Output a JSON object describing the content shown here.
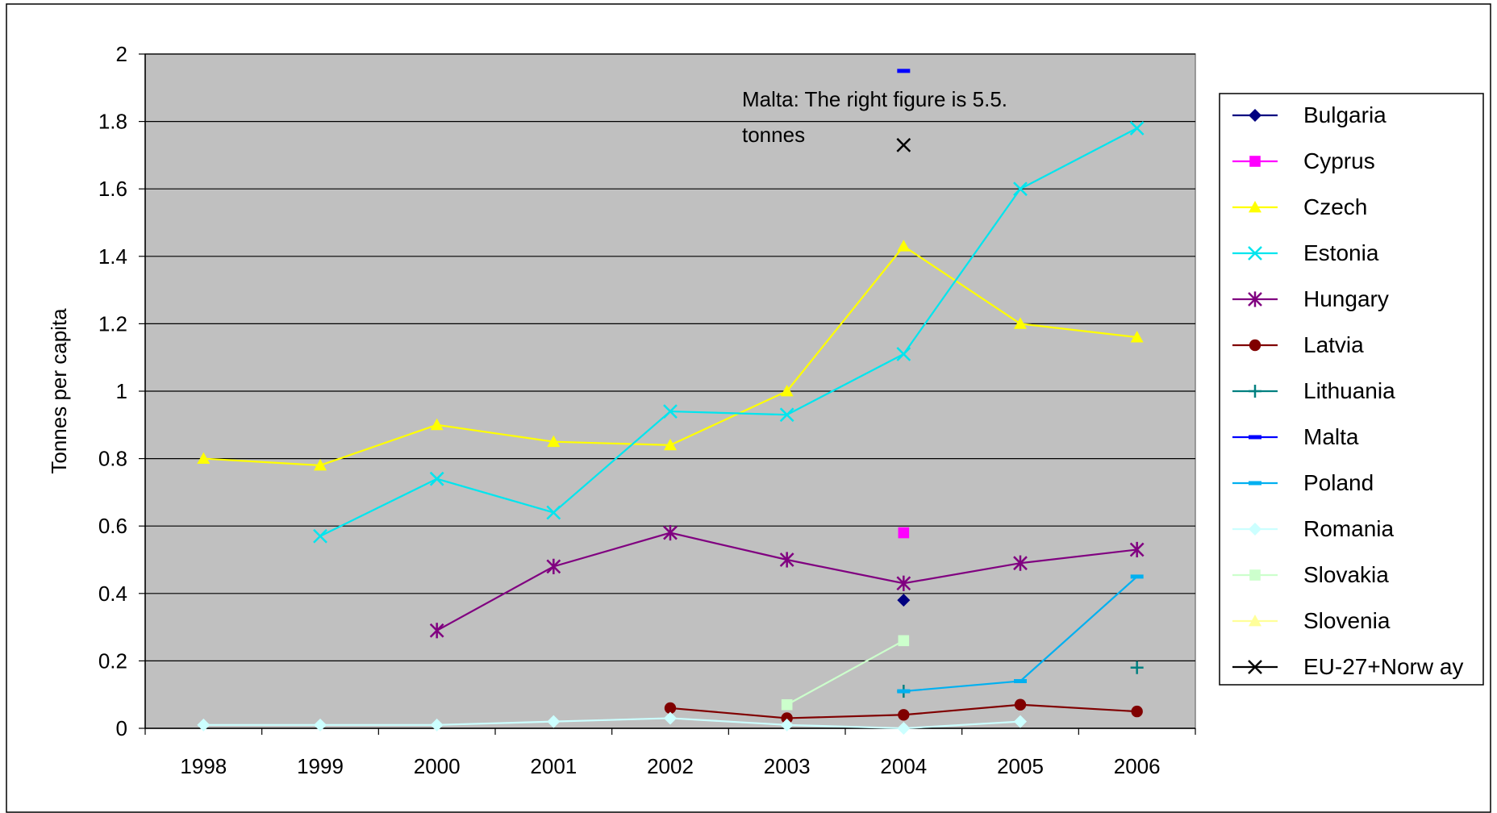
{
  "chart_data": {
    "type": "line",
    "title": "",
    "xlabel": "",
    "ylabel": "Tonnes per capita",
    "categories": [
      "1998",
      "1999",
      "2000",
      "2001",
      "2002",
      "2003",
      "2004",
      "2005",
      "2006"
    ],
    "ylim": [
      0,
      2
    ],
    "yticks": [
      "0",
      "0.2",
      "0.4",
      "0.6",
      "0.8",
      "1",
      "1.2",
      "1.4",
      "1.6",
      "1.8",
      "2"
    ],
    "grid": true,
    "plot_background": "#c0c0c0",
    "legend_position": "right",
    "annotation": {
      "line1": "Malta: The right figure is 5.5.",
      "line2": "tonnes",
      "at_category": "2004"
    },
    "series": [
      {
        "name": "Bulgaria",
        "color": "#000080",
        "marker": "diamond",
        "line": true,
        "values": [
          null,
          null,
          null,
          null,
          null,
          null,
          0.38,
          null,
          null
        ]
      },
      {
        "name": "Cyprus",
        "color": "#ff00ff",
        "marker": "square",
        "line": true,
        "values": [
          null,
          null,
          null,
          null,
          null,
          null,
          0.58,
          null,
          null
        ]
      },
      {
        "name": "Czech",
        "color": "#ffff00",
        "marker": "triangle",
        "line": true,
        "values": [
          0.8,
          0.78,
          0.9,
          0.85,
          0.84,
          1.0,
          1.43,
          1.2,
          1.16
        ]
      },
      {
        "name": "Estonia",
        "color": "#00e5ee",
        "marker": "x",
        "line": true,
        "values": [
          null,
          0.57,
          0.74,
          0.64,
          0.94,
          0.93,
          1.11,
          1.6,
          1.78
        ]
      },
      {
        "name": "Hungary",
        "color": "#800080",
        "marker": "star",
        "line": true,
        "values": [
          null,
          null,
          0.29,
          0.48,
          0.58,
          0.5,
          0.43,
          0.49,
          0.53
        ]
      },
      {
        "name": "Latvia",
        "color": "#800000",
        "marker": "circle",
        "line": true,
        "values": [
          null,
          null,
          null,
          null,
          0.06,
          0.03,
          0.04,
          0.07,
          0.05
        ]
      },
      {
        "name": "Lithuania",
        "color": "#008080",
        "marker": "plus",
        "line": true,
        "values": [
          null,
          null,
          null,
          null,
          null,
          null,
          0.11,
          null,
          0.18
        ]
      },
      {
        "name": "Malta",
        "color": "#0000ff",
        "marker": "dash",
        "line": true,
        "values": [
          null,
          null,
          null,
          null,
          null,
          null,
          1.95,
          null,
          null
        ]
      },
      {
        "name": "Poland",
        "color": "#00b0f0",
        "marker": "dash",
        "line": true,
        "values": [
          null,
          null,
          null,
          null,
          null,
          null,
          0.11,
          0.14,
          0.45
        ]
      },
      {
        "name": "Romania",
        "color": "#ccffff",
        "marker": "diamond",
        "line": true,
        "values": [
          0.01,
          0.01,
          0.01,
          0.02,
          0.03,
          0.01,
          0.0,
          0.02,
          null
        ]
      },
      {
        "name": "Slovakia",
        "color": "#ccffcc",
        "marker": "square",
        "line": true,
        "values": [
          null,
          null,
          null,
          null,
          null,
          0.07,
          0.26,
          null,
          null
        ]
      },
      {
        "name": "Slovenia",
        "color": "#ffff99",
        "marker": "triangle",
        "line": true,
        "values": [
          null,
          null,
          null,
          null,
          null,
          null,
          null,
          null,
          null
        ]
      },
      {
        "name": "EU-27+Norw ay",
        "color": "#000000",
        "marker": "x",
        "line": true,
        "values": [
          null,
          null,
          null,
          null,
          null,
          null,
          1.73,
          null,
          null
        ]
      }
    ]
  }
}
